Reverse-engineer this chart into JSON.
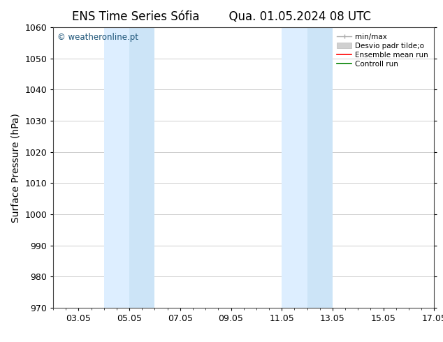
{
  "title_left": "ENS Time Series Sófia",
  "title_right": "Qua. 01.05.2024 08 UTC",
  "ylabel": "Surface Pressure (hPa)",
  "ylim": [
    970,
    1060
  ],
  "yticks": [
    970,
    980,
    990,
    1000,
    1010,
    1020,
    1030,
    1040,
    1050,
    1060
  ],
  "xlim": [
    2,
    17
  ],
  "xticks_labels": [
    "03.05",
    "05.05",
    "07.05",
    "09.05",
    "11.05",
    "13.05",
    "15.05",
    "17.05"
  ],
  "xticks_positions": [
    3,
    5,
    7,
    9,
    11,
    13,
    15,
    17
  ],
  "shaded_bands": [
    {
      "x_start": 4.0,
      "x_end": 5.0,
      "color": "#ddeeff"
    },
    {
      "x_start": 5.0,
      "x_end": 6.0,
      "color": "#cce4f7"
    },
    {
      "x_start": 11.0,
      "x_end": 12.0,
      "color": "#ddeeff"
    },
    {
      "x_start": 12.0,
      "x_end": 13.0,
      "color": "#cce4f7"
    }
  ],
  "band_color_light": "#ddeeff",
  "band_color_mid": "#cce4f7",
  "copyright_text": "© weatheronline.pt",
  "copyright_color": "#1a5276",
  "bg_color": "#ffffff",
  "grid_color": "#bbbbbb",
  "title_fontsize": 12,
  "tick_fontsize": 9,
  "ylabel_fontsize": 10
}
